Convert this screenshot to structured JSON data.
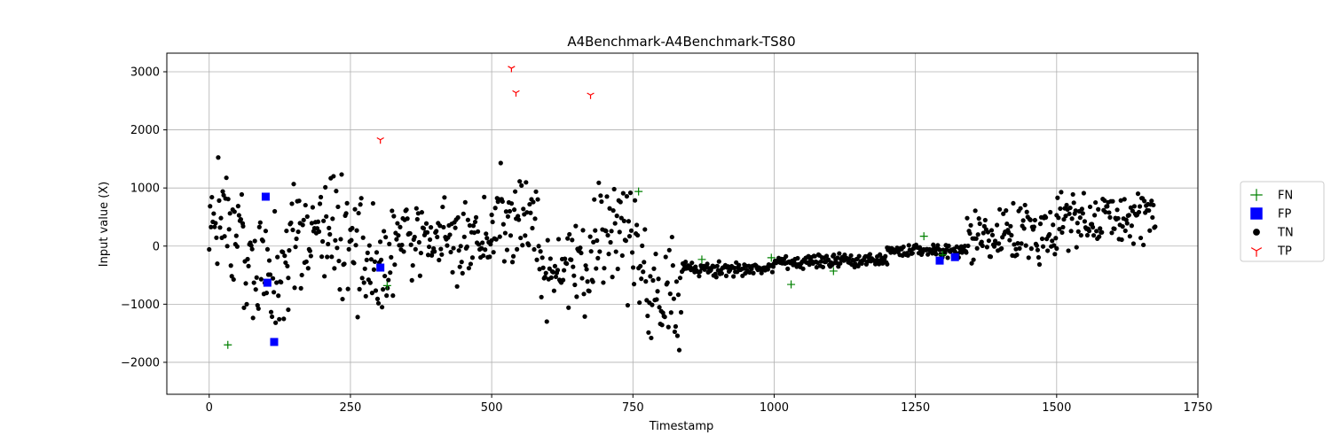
{
  "chart_data": {
    "type": "scatter",
    "title": "A4Benchmark-A4Benchmark-TS80",
    "xlabel": "Timestamp",
    "ylabel": "Input value (X)",
    "xlim": [
      -75,
      1750
    ],
    "ylim": [
      -2550,
      3320
    ],
    "xticks": [
      0,
      250,
      500,
      750,
      1000,
      1250,
      1500,
      1750
    ],
    "yticks": [
      -2000,
      -1000,
      0,
      1000,
      2000,
      3000
    ],
    "xtick_labels": [
      "0",
      "250",
      "500",
      "750",
      "1000",
      "1250",
      "1500",
      "1750"
    ],
    "ytick_labels": [
      "−2000",
      "−1000",
      "0",
      "1000",
      "2000",
      "3000"
    ],
    "grid": true,
    "legend_position": "outside-right",
    "series": [
      {
        "name": "FN",
        "marker": "plus",
        "color": "#008000",
        "points": [
          [
            33,
            -1700
          ],
          [
            315,
            -680
          ],
          [
            760,
            940
          ],
          [
            872,
            -230
          ],
          [
            995,
            -200
          ],
          [
            1030,
            -660
          ],
          [
            1105,
            -430
          ],
          [
            1265,
            170
          ],
          [
            1298,
            -150
          ]
        ]
      },
      {
        "name": "FP",
        "marker": "square",
        "color": "#0000ff",
        "points": [
          [
            100,
            850
          ],
          [
            103,
            -630
          ],
          [
            115,
            -1650
          ],
          [
            303,
            -370
          ],
          [
            1293,
            -250
          ],
          [
            1320,
            -190
          ]
        ]
      },
      {
        "name": "TN",
        "marker": "circle",
        "color": "#000000",
        "segments": [
          {
            "start": 0,
            "end": 60,
            "center": 400,
            "spread": 1300
          },
          {
            "start": 60,
            "end": 140,
            "center": -250,
            "spread": 1400
          },
          {
            "start": 140,
            "end": 250,
            "center": 250,
            "spread": 1450
          },
          {
            "start": 250,
            "end": 330,
            "center": -300,
            "spread": 1450
          },
          {
            "start": 330,
            "end": 500,
            "center": 100,
            "spread": 1000
          },
          {
            "start": 500,
            "end": 580,
            "center": 500,
            "spread": 1350
          },
          {
            "start": 580,
            "end": 680,
            "center": -350,
            "spread": 1450
          },
          {
            "start": 680,
            "end": 760,
            "center": 100,
            "spread": 1350
          },
          {
            "start": 760,
            "end": 840,
            "center": -700,
            "spread": 1500
          },
          {
            "start": 840,
            "end": 1000,
            "center": -400,
            "spread": 180
          },
          {
            "start": 1000,
            "end": 1200,
            "center": -250,
            "spread": 170
          },
          {
            "start": 1200,
            "end": 1340,
            "center": -80,
            "spread": 150
          },
          {
            "start": 1340,
            "end": 1500,
            "center": 200,
            "spread": 650
          },
          {
            "start": 1500,
            "end": 1675,
            "center": 500,
            "spread": 700
          }
        ],
        "sample_step": 1.6
      },
      {
        "name": "TP",
        "marker": "tri_down",
        "color": "#ff0000",
        "points": [
          [
            303,
            1830
          ],
          [
            535,
            3060
          ],
          [
            543,
            2640
          ],
          [
            675,
            2600
          ]
        ]
      }
    ]
  }
}
